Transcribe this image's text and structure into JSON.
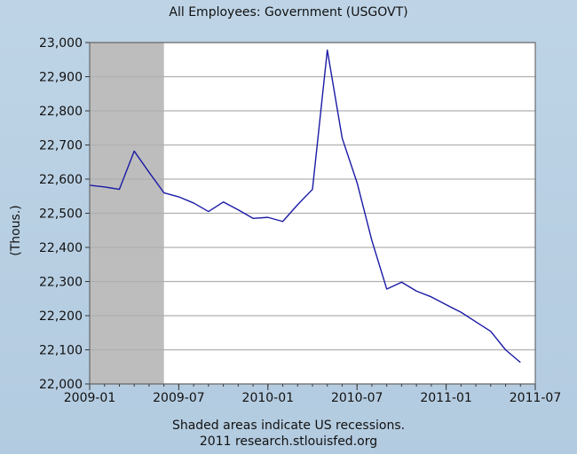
{
  "chart_data": {
    "type": "line",
    "title": "All Employees: Government (USGOVT)",
    "ylabel": "(Thous.)",
    "xlabel": "",
    "ylim": [
      22000,
      23000
    ],
    "xlim": [
      "2009-01",
      "2011-07"
    ],
    "y_ticks": [
      "22,000",
      "22,100",
      "22,200",
      "22,300",
      "22,400",
      "22,500",
      "22,600",
      "22,700",
      "22,800",
      "22,900",
      "23,000"
    ],
    "x_ticks": [
      "2009-01",
      "2009-07",
      "2010-01",
      "2010-07",
      "2011-01",
      "2011-07"
    ],
    "recession_shading": {
      "start": "2009-01",
      "end": "2009-06"
    },
    "grid": "horizontal",
    "series": [
      {
        "color": "#1a1aa6",
        "x": [
          "2009-01",
          "2009-02",
          "2009-03",
          "2009-04",
          "2009-05",
          "2009-06",
          "2009-07",
          "2009-08",
          "2009-09",
          "2009-10",
          "2009-11",
          "2009-12",
          "2010-01",
          "2010-02",
          "2010-03",
          "2010-04",
          "2010-05",
          "2010-06",
          "2010-07",
          "2010-08",
          "2010-09",
          "2010-10",
          "2010-11",
          "2010-12",
          "2011-01",
          "2011-02",
          "2011-03",
          "2011-04",
          "2011-05",
          "2011-06"
        ],
        "values": [
          22582,
          22577,
          22570,
          22682,
          22620,
          22560,
          22548,
          22530,
          22505,
          22533,
          22510,
          22485,
          22488,
          22476,
          22525,
          22570,
          22978,
          22720,
          22590,
          22420,
          22278,
          22298,
          22272,
          22255,
          22232,
          22210,
          22182,
          22154,
          22100,
          22063
        ]
      }
    ],
    "footnote": "Shaded areas indicate US recessions.",
    "source": "2011 research.stlouisfed.org",
    "colors": {
      "background": "#b9d0e2",
      "plot": "#ffffff",
      "recession": "#bdbdbd",
      "grid": "#b0b0b0",
      "line": "#1a1aa6"
    }
  }
}
